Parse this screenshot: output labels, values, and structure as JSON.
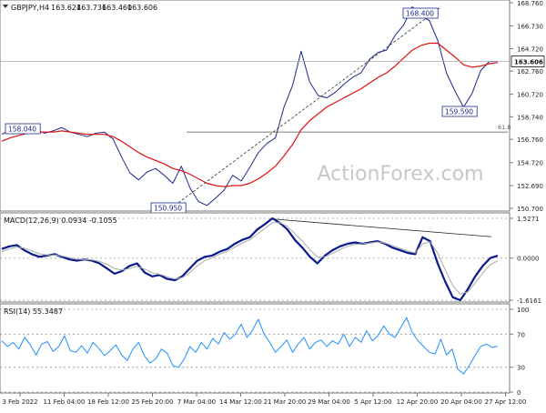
{
  "chart_data": [
    {
      "type": "line",
      "panel": "price",
      "title": "GBPJPY,H4",
      "ohlc": {
        "open": "163.624",
        "high": "163.736",
        "low": "163.460",
        "close": "163.606"
      },
      "y_ticks": [
        "168.760",
        "166.730",
        "164.720",
        "162.760",
        "160.720",
        "158.740",
        "156.760",
        "154.720",
        "152.690",
        "150.700"
      ],
      "ylim": [
        150.7,
        168.76
      ],
      "current_price": "163.606",
      "series": [
        {
          "name": "",
          "color": "#1b2a8c",
          "values": [
            157.2,
            157.6,
            157.9,
            158.0,
            157.6,
            157.3,
            157.5,
            157.8,
            157.4,
            157.2,
            157.0,
            157.3,
            157.4,
            156.8,
            155.2,
            153.8,
            153.2,
            153.9,
            154.2,
            153.6,
            152.9,
            154.4,
            152.5,
            151.3,
            150.95,
            151.6,
            152.3,
            153.6,
            153.1,
            154.3,
            155.6,
            156.4,
            156.9,
            159.6,
            161.5,
            164.5,
            161.8,
            160.6,
            160.4,
            160.9,
            161.6,
            162.2,
            162.6,
            163.8,
            164.4,
            164.6,
            165.9,
            166.8,
            168.4,
            167.6,
            167.2,
            165.4,
            162.6,
            161.0,
            159.59,
            160.8,
            162.8,
            163.6,
            163.606
          ]
        },
        {
          "name": "",
          "color": "#e01010",
          "values": [
            156.6,
            156.9,
            157.1,
            157.3,
            157.4,
            157.4,
            157.4,
            157.5,
            157.4,
            157.3,
            157.2,
            157.2,
            157.2,
            157.0,
            156.6,
            156.1,
            155.6,
            155.2,
            154.9,
            154.6,
            154.2,
            154.0,
            153.7,
            153.3,
            152.9,
            152.7,
            152.6,
            152.7,
            152.7,
            152.9,
            153.3,
            153.8,
            154.4,
            155.3,
            156.3,
            157.6,
            158.4,
            159.0,
            159.6,
            160.0,
            160.4,
            160.8,
            161.2,
            161.7,
            162.2,
            162.6,
            163.2,
            163.9,
            164.6,
            165.0,
            165.2,
            165.2,
            164.6,
            164.0,
            163.3,
            163.1,
            163.2,
            163.4,
            163.5
          ]
        }
      ]
    },
    {
      "type": "line",
      "panel": "macd",
      "title": "MACD(12,26,9) 0.0934 -0.1055",
      "y_ticks": [
        "1.5271",
        "0.0000",
        "-1.6161"
      ],
      "ylim": [
        -1.6161,
        1.5271
      ],
      "series": [
        {
          "name": "",
          "color": "#0a1a8c",
          "values": [
            0.35,
            0.45,
            0.5,
            0.3,
            0.15,
            0.05,
            0.1,
            0.15,
            0.05,
            -0.05,
            -0.1,
            -0.05,
            -0.1,
            -0.2,
            -0.4,
            -0.6,
            -0.5,
            -0.3,
            -0.2,
            -0.55,
            -0.7,
            -0.65,
            -0.8,
            -0.85,
            -0.7,
            -0.4,
            -0.1,
            0.05,
            0.1,
            0.25,
            0.35,
            0.55,
            0.7,
            0.8,
            1.1,
            1.3,
            1.5271,
            1.35,
            1.1,
            0.7,
            0.4,
            0.05,
            -0.2,
            0.1,
            0.3,
            0.45,
            0.55,
            0.6,
            0.55,
            0.6,
            0.65,
            0.55,
            0.4,
            0.3,
            0.2,
            0.15,
            0.8,
            0.65,
            -0.2,
            -0.9,
            -1.5,
            -1.6161,
            -1.2,
            -0.7,
            -0.3,
            0.0,
            0.0934
          ]
        },
        {
          "name": "",
          "color": "#aaaaaa",
          "values": [
            0.25,
            0.35,
            0.42,
            0.38,
            0.28,
            0.16,
            0.12,
            0.12,
            0.08,
            0.02,
            -0.04,
            -0.05,
            -0.07,
            -0.12,
            -0.24,
            -0.4,
            -0.46,
            -0.4,
            -0.32,
            -0.42,
            -0.56,
            -0.62,
            -0.72,
            -0.8,
            -0.75,
            -0.56,
            -0.3,
            -0.1,
            0.02,
            0.15,
            0.26,
            0.42,
            0.58,
            0.7,
            0.92,
            1.14,
            1.36,
            1.36,
            1.22,
            0.94,
            0.65,
            0.32,
            0.05,
            0.05,
            0.18,
            0.33,
            0.45,
            0.53,
            0.55,
            0.58,
            0.62,
            0.58,
            0.48,
            0.37,
            0.27,
            0.2,
            0.55,
            0.62,
            0.2,
            -0.45,
            -1.05,
            -1.38,
            -1.3,
            -0.95,
            -0.58,
            -0.25,
            -0.1055
          ]
        }
      ],
      "annotations": [
        "divergence line"
      ]
    },
    {
      "type": "line",
      "panel": "rsi",
      "title": "RSI(14) 55.3487",
      "y_ticks": [
        "100",
        "70",
        "30",
        "0"
      ],
      "ylim": [
        0,
        100
      ],
      "series": [
        {
          "name": "",
          "color": "#1e90ff",
          "values": [
            62,
            55,
            60,
            52,
            66,
            57,
            45,
            58,
            61,
            49,
            55,
            68,
            50,
            48,
            56,
            47,
            60,
            53,
            44,
            50,
            57,
            45,
            38,
            52,
            60,
            44,
            35,
            40,
            52,
            47,
            32,
            30,
            40,
            55,
            48,
            60,
            52,
            65,
            58,
            72,
            64,
            70,
            82,
            66,
            75,
            88,
            70,
            60,
            48,
            55,
            63,
            48,
            58,
            66,
            52,
            60,
            63,
            55,
            62,
            58,
            70,
            55,
            66,
            60,
            74,
            62,
            68,
            80,
            70,
            66,
            78,
            90,
            72,
            62,
            55,
            48,
            46,
            64,
            45,
            52,
            28,
            22,
            32,
            44,
            55,
            58,
            54,
            55.3487
          ]
        }
      ]
    }
  ],
  "x_tick_labels": [
    "3 Feb 2022",
    "11 Feb 04:00",
    "18 Feb 12:00",
    "25 Feb 20:00",
    "7 Mar 04:00",
    "14 Mar 12:00",
    "21 Mar 20:00",
    "29 Mar 04:00",
    "5 Apr 12:00",
    "12 Apr 20:00",
    "20 Apr 04:00",
    "27 Apr 12:00"
  ],
  "annotations": {
    "high_label": "168.400",
    "low_label_1": "158.040",
    "low_label_2": "150.950",
    "low_label_3": "159.590",
    "fib_label": "61.8"
  },
  "watermark": "ActionForex.com",
  "colors": {
    "price": "#1b2a8c",
    "ma": "#e01010",
    "macd": "#0a1a8c",
    "signal": "#aaaaaa",
    "rsi": "#1e90ff",
    "grid_dotted": "#9a9a9a",
    "frame": "#777777",
    "current_price_bg": "#ffffff",
    "watermark": "#c8c8c8"
  }
}
